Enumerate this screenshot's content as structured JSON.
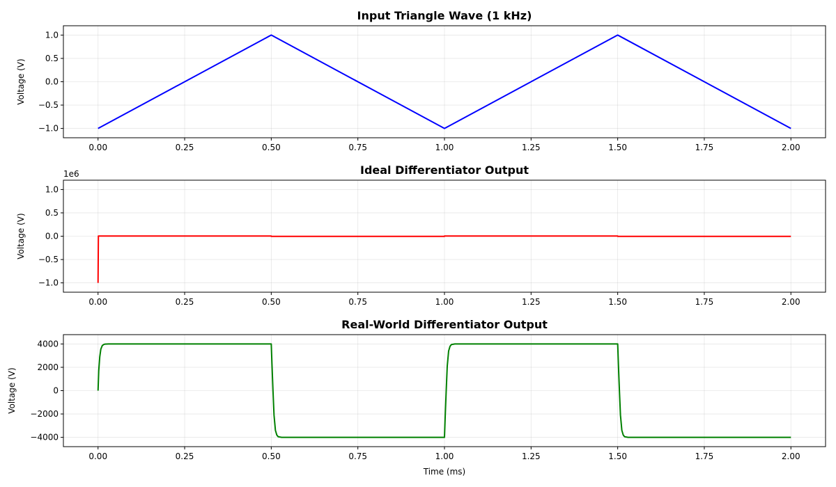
{
  "chart_data": [
    {
      "type": "line",
      "title": "Input Triangle Wave (1 kHz)",
      "xlabel": "",
      "ylabel": "Voltage (V)",
      "xlim": [
        -0.1,
        2.1
      ],
      "ylim": [
        -1.2,
        1.2
      ],
      "xticks": [
        0,
        0.25,
        0.5,
        0.75,
        1.0,
        1.25,
        1.5,
        1.75,
        2.0
      ],
      "xtick_labels": [
        "0.00",
        "0.25",
        "0.50",
        "0.75",
        "1.00",
        "1.25",
        "1.50",
        "1.75",
        "2.00"
      ],
      "yticks": [
        -1.0,
        -0.5,
        0.0,
        0.5,
        1.0
      ],
      "ytick_labels": [
        "−1.0",
        "−0.5",
        "0.0",
        "0.5",
        "1.0"
      ],
      "grid": true,
      "series": [
        {
          "color": "#0000ff",
          "x": [
            0.0,
            0.5,
            1.0,
            1.5,
            2.0
          ],
          "y": [
            -1.0,
            1.0,
            -1.0,
            1.0,
            -1.0
          ]
        }
      ]
    },
    {
      "type": "line",
      "title": "Ideal Differentiator Output",
      "xlabel": "",
      "ylabel": "Voltage (V)",
      "offset_text": "1e6",
      "xlim": [
        -0.1,
        2.1
      ],
      "ylim": [
        -1.2,
        1.2
      ],
      "xticks": [
        0,
        0.25,
        0.5,
        0.75,
        1.0,
        1.25,
        1.5,
        1.75,
        2.0
      ],
      "xtick_labels": [
        "0.00",
        "0.25",
        "0.50",
        "0.75",
        "1.00",
        "1.25",
        "1.50",
        "1.75",
        "2.00"
      ],
      "yticks": [
        -1.0,
        -0.5,
        0.0,
        0.5,
        1.0
      ],
      "ytick_labels": [
        "−1.0",
        "−0.5",
        "0.0",
        "0.5",
        "1.0"
      ],
      "grid": true,
      "series": [
        {
          "color": "#ff0000",
          "x": [
            0.0,
            0.001,
            0.5,
            0.5,
            1.0,
            1.0,
            1.5,
            1.5,
            2.0
          ],
          "y": [
            -1.0,
            0.004,
            0.004,
            -0.004,
            -0.004,
            0.004,
            0.004,
            -0.004,
            -0.004
          ]
        }
      ]
    },
    {
      "type": "line",
      "title": "Real-World Differentiator Output",
      "xlabel": "Time (ms)",
      "ylabel": "Voltage (V)",
      "xlim": [
        -0.1,
        2.1
      ],
      "ylim": [
        -4800,
        4800
      ],
      "xticks": [
        0,
        0.25,
        0.5,
        0.75,
        1.0,
        1.25,
        1.5,
        1.75,
        2.0
      ],
      "xtick_labels": [
        "0.00",
        "0.25",
        "0.50",
        "0.75",
        "1.00",
        "1.25",
        "1.50",
        "1.75",
        "2.00"
      ],
      "yticks": [
        -4000,
        -2000,
        0,
        2000,
        4000
      ],
      "ytick_labels": [
        "−4000",
        "−2000",
        "0",
        "2000",
        "4000"
      ],
      "grid": true,
      "series": [
        {
          "color": "#008000",
          "x": [
            0.0,
            0.002,
            0.005,
            0.008,
            0.012,
            0.016,
            0.02,
            0.03,
            0.5,
            0.502,
            0.505,
            0.508,
            0.512,
            0.516,
            0.52,
            0.53,
            1.0,
            1.002,
            1.005,
            1.008,
            1.012,
            1.016,
            1.02,
            1.03,
            1.5,
            1.502,
            1.505,
            1.508,
            1.512,
            1.516,
            1.52,
            1.53,
            2.0
          ],
          "y": [
            0,
            1700,
            2900,
            3550,
            3850,
            3950,
            3990,
            4000,
            4000,
            2300,
            0,
            -2100,
            -3400,
            -3800,
            -3950,
            -4000,
            -4000,
            -2300,
            0,
            2100,
            3400,
            3800,
            3950,
            4000,
            4000,
            2300,
            0,
            -2100,
            -3400,
            -3800,
            -3950,
            -4000,
            -4000
          ]
        }
      ]
    }
  ]
}
